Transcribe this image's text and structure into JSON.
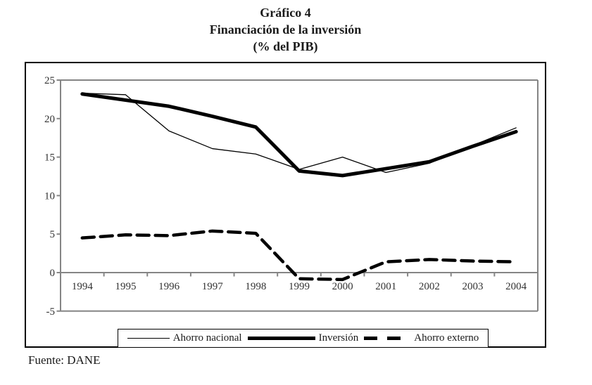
{
  "title": {
    "line1": "Gráfico 4",
    "line2": "Financiación de la inversión",
    "line3": "(% del PIB)"
  },
  "source": "Fuente: DANE",
  "colors": {
    "line": "#000000",
    "axis": "#858585",
    "tick_text": "#333333",
    "background": "#ffffff"
  },
  "chart_data": {
    "type": "line",
    "title": "Gráfico 4 — Financiación de la inversión (% del PIB)",
    "categories": [
      "1994",
      "1995",
      "1996",
      "1997",
      "1998",
      "1999",
      "2000",
      "2001",
      "2002",
      "2003",
      "2004"
    ],
    "series": [
      {
        "name": "Ahorro nacional",
        "style": "thin",
        "values": [
          23.3,
          23.1,
          18.4,
          16.1,
          15.4,
          13.4,
          15.0,
          13.0,
          14.2,
          16.5,
          18.8
        ]
      },
      {
        "name": "Inversión",
        "style": "thick",
        "values": [
          23.2,
          22.4,
          21.6,
          20.3,
          18.9,
          13.2,
          12.6,
          13.5,
          14.4,
          16.4,
          18.3
        ]
      },
      {
        "name": "Ahorro externo",
        "style": "dashed",
        "values": [
          4.5,
          4.9,
          4.8,
          5.4,
          5.1,
          -0.8,
          -0.9,
          1.4,
          1.7,
          1.5,
          1.4
        ]
      }
    ],
    "xlabel": "",
    "ylabel": "",
    "ylim": [
      -5,
      25
    ],
    "yticks": [
      -5,
      0,
      5,
      10,
      15,
      20,
      25
    ],
    "grid": "zero-line-only",
    "legend_position": "bottom"
  }
}
